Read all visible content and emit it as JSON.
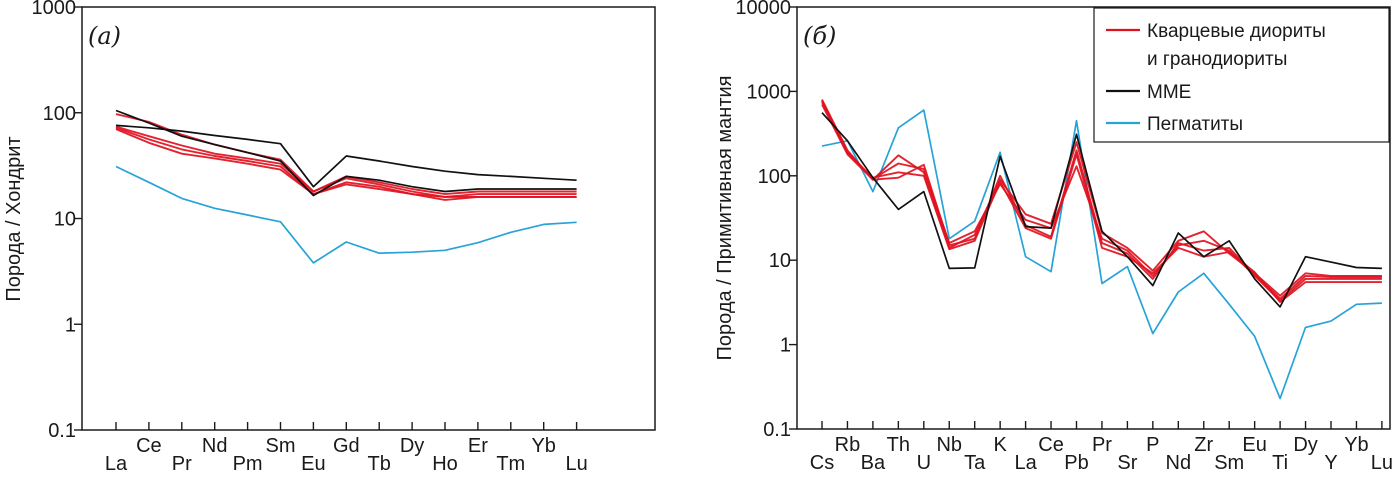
{
  "colors": {
    "granitoids": "#e0111f",
    "mme": "#111111",
    "pegmatites": "#27a3d8",
    "axis": "#1a1a1a"
  },
  "legend": {
    "items": [
      {
        "key": "granitoids",
        "label_line1": "Кварцевые диориты",
        "label_line2": "и гранодиориты"
      },
      {
        "key": "mme",
        "label_line1": "MME",
        "label_line2": ""
      },
      {
        "key": "pegmatites",
        "label_line1": "Пегматиты",
        "label_line2": ""
      }
    ],
    "placement": "top-right of panel б"
  },
  "chart_data": [
    {
      "id": "a",
      "type": "line",
      "panel_label": "(a)",
      "title": "",
      "xlabel": "",
      "ylabel": "Порода / Хондрит",
      "yscale": "log",
      "ylim": [
        0.1,
        1000
      ],
      "yticks": [
        0.1,
        1,
        10,
        100,
        1000
      ],
      "ytick_labels": [
        "0.1",
        "1",
        "10",
        "100",
        "1000"
      ],
      "grid": false,
      "categories": [
        "La",
        "Ce",
        "Pr",
        "Nd",
        "Pm",
        "Sm",
        "Eu",
        "Gd",
        "Tb",
        "Dy",
        "Ho",
        "Er",
        "Tm",
        "Yb",
        "Lu"
      ],
      "series": [
        {
          "name": "Кварцевые диориты и гранодиориты 1",
          "group": "granitoids",
          "values": [
            97,
            82,
            62,
            50,
            42,
            36,
            18,
            25,
            22,
            19,
            17,
            18,
            18,
            18,
            18
          ]
        },
        {
          "name": "Кварцевые диориты и гранодиориты 2",
          "group": "granitoids",
          "values": [
            72,
            56,
            45,
            39,
            35,
            31,
            17,
            22,
            20,
            17,
            16,
            16,
            16,
            16,
            16
          ]
        },
        {
          "name": "Кварцевые диориты и гранодиориты 3",
          "group": "granitoids",
          "values": [
            70,
            52,
            41,
            37,
            33,
            29,
            17,
            21,
            19,
            17,
            15,
            16,
            16,
            16,
            16
          ]
        },
        {
          "name": "Кварцевые диориты и гранодиориты 4",
          "group": "granitoids",
          "values": [
            74,
            60,
            49,
            41,
            37,
            33,
            18,
            24,
            21,
            18,
            16,
            17,
            17,
            17,
            17
          ]
        },
        {
          "name": "MME 1",
          "group": "mme",
          "values": [
            105,
            80,
            60,
            50,
            42,
            35,
            16.5,
            25,
            23,
            20,
            18,
            19,
            19,
            19,
            19
          ]
        },
        {
          "name": "MME 2",
          "group": "mme",
          "values": [
            76,
            72,
            67,
            61,
            56,
            51,
            20,
            39,
            35,
            31,
            28,
            26,
            25,
            24,
            23
          ]
        },
        {
          "name": "Пегматиты",
          "group": "pegmatites",
          "values": [
            31,
            22,
            15.5,
            12.5,
            10.8,
            9.3,
            3.8,
            6.0,
            4.7,
            4.8,
            5.0,
            5.9,
            7.4,
            8.8,
            9.2
          ]
        }
      ]
    },
    {
      "id": "b",
      "type": "line",
      "panel_label": "(б)",
      "title": "",
      "xlabel": "",
      "ylabel": "Порода / Примитивная мантия",
      "yscale": "log",
      "ylim": [
        0.1,
        10000
      ],
      "yticks": [
        0.1,
        1,
        10,
        100,
        1000,
        10000
      ],
      "ytick_labels": [
        "0.1",
        "1",
        "10",
        "100",
        "1000",
        "10000"
      ],
      "grid": false,
      "categories": [
        "Cs",
        "Rb",
        "Ba",
        "Th",
        "U",
        "Nb",
        "Ta",
        "K",
        "La",
        "Ce",
        "Pb",
        "Pr",
        "Sr",
        "P",
        "Nd",
        "Zr",
        "Sm",
        "Eu",
        "Ti",
        "Dy",
        "Y",
        "Yb",
        "Lu"
      ],
      "series": [
        {
          "name": "Кварцевые диориты и гранодиориты 1",
          "group": "granitoids",
          "values": [
            800,
            200,
            90,
            175,
            110,
            14,
            20,
            90,
            35,
            27,
            250,
            21,
            14,
            7.5,
            17,
            22,
            12,
            7,
            3.8,
            7,
            6.5,
            6.5,
            6.5
          ]
        },
        {
          "name": "Кварцевые диориты и гранодиориты 2",
          "group": "granitoids",
          "values": [
            750,
            190,
            92,
            140,
            120,
            16,
            22,
            80,
            30,
            24,
            130,
            18,
            13,
            6.5,
            15,
            17,
            13,
            6.5,
            3.3,
            6,
            6,
            6,
            6
          ]
        },
        {
          "name": "Кварцевые диориты и гранодиориты 3",
          "group": "granitoids",
          "values": [
            700,
            180,
            90,
            95,
            135,
            15,
            18,
            100,
            26,
            19,
            200,
            16,
            12,
            6,
            16,
            13,
            14,
            6.8,
            3.5,
            6.5,
            6.3,
            6.3,
            6.3
          ]
        },
        {
          "name": "Кварцевые диориты и гранодиориты 4",
          "group": "granitoids",
          "values": [
            780,
            185,
            95,
            110,
            100,
            13.5,
            17,
            85,
            24,
            18,
            180,
            14,
            11,
            7,
            14,
            11,
            12.5,
            7.2,
            3.2,
            5.5,
            5.5,
            5.5,
            5.5
          ]
        },
        {
          "name": "MME",
          "group": "mme",
          "values": [
            560,
            260,
            95,
            40,
            65,
            8.0,
            8.1,
            170,
            25,
            24,
            310,
            22,
            11,
            5.0,
            21,
            11,
            17,
            6,
            2.8,
            11,
            9.5,
            8.2,
            8.0
          ]
        },
        {
          "name": "Пегматиты",
          "group": "pegmatites",
          "values": [
            225,
            260,
            65,
            370,
            600,
            18,
            29,
            190,
            11,
            7.3,
            450,
            5.3,
            8.4,
            1.35,
            4.2,
            7.0,
            3.0,
            1.25,
            0.23,
            1.6,
            1.9,
            3.0,
            3.1
          ]
        }
      ]
    }
  ]
}
